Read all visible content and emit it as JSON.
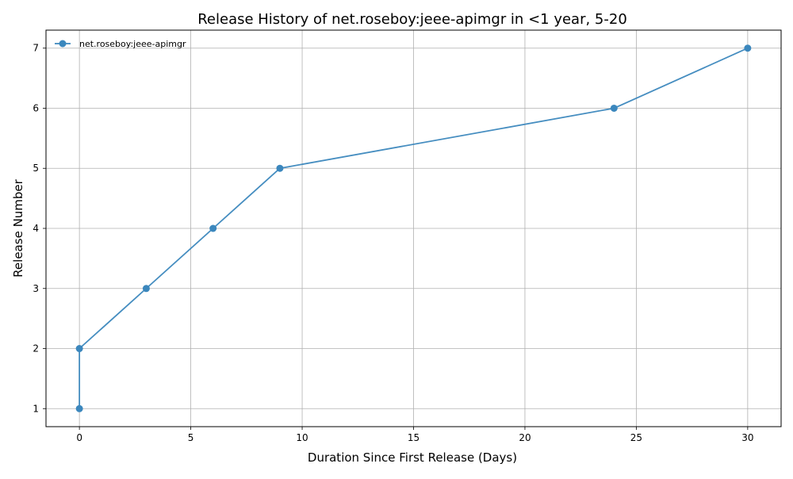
{
  "chart_data": {
    "type": "line",
    "title": "Release History of net.roseboy:jeee-apimgr in <1 year, 5-20",
    "xlabel": "Duration Since First Release (Days)",
    "ylabel": "Release Number",
    "xlim": [
      -1.5,
      31.5
    ],
    "ylim": [
      0.7,
      7.3
    ],
    "xticks": [
      0,
      5,
      10,
      15,
      20,
      25,
      30
    ],
    "yticks": [
      1,
      2,
      3,
      4,
      5,
      6,
      7
    ],
    "grid": true,
    "legend_position": "top-left",
    "series": [
      {
        "name": "net.roseboy:jeee-apimgr",
        "color": "#3b87bd",
        "x": [
          0,
          0,
          3,
          6,
          9,
          24,
          30
        ],
        "y": [
          1,
          2,
          3,
          4,
          5,
          6,
          7
        ]
      }
    ]
  }
}
